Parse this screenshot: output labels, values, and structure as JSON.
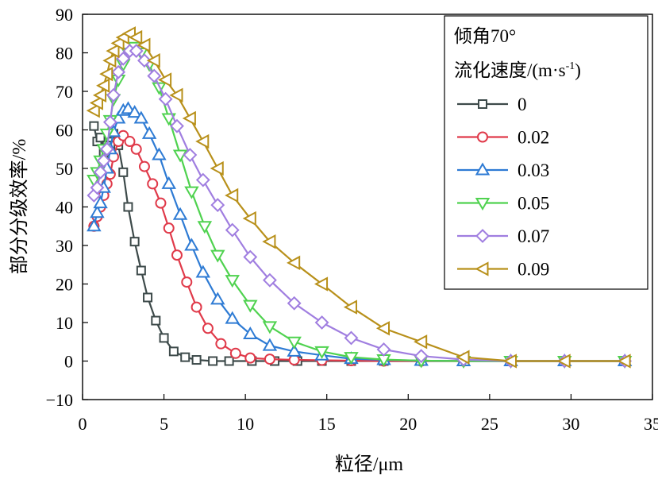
{
  "chart_data": {
    "type": "line",
    "xlabel": "粒径/μm",
    "ylabel": "部分分级效率/%",
    "xlim": [
      0,
      35
    ],
    "ylim": [
      -10,
      90
    ],
    "xticks": [
      "0",
      "5",
      "10",
      "15",
      "20",
      "25",
      "30",
      "35"
    ],
    "yticks": [
      "−10",
      "0",
      "10",
      "20",
      "30",
      "40",
      "50",
      "60",
      "70",
      "80",
      "90"
    ],
    "grid": false,
    "legend": {
      "placement": "top-right",
      "title_line1": "倾角70°",
      "title_line2_main": "流化速度/(m·s",
      "title_line2_sup": "-1",
      "title_line2_end": ")"
    },
    "series": [
      {
        "name": "0",
        "color": "#3d4a4a",
        "marker": "square",
        "points": [
          [
            0.7,
            61
          ],
          [
            0.9,
            57
          ],
          [
            1.1,
            58
          ],
          [
            1.3,
            54
          ],
          [
            1.5,
            56
          ],
          [
            1.7,
            58
          ],
          [
            1.9,
            59
          ],
          [
            2.2,
            56
          ],
          [
            2.5,
            49
          ],
          [
            2.8,
            40
          ],
          [
            3.2,
            31
          ],
          [
            3.6,
            23.5
          ],
          [
            4.0,
            16.5
          ],
          [
            4.5,
            10.5
          ],
          [
            5.0,
            6
          ],
          [
            5.6,
            2.5
          ],
          [
            6.3,
            1
          ],
          [
            7.0,
            0.3
          ],
          [
            8.0,
            0
          ],
          [
            9.0,
            0
          ],
          [
            10.4,
            0
          ],
          [
            11.8,
            0
          ],
          [
            13.2,
            0
          ],
          [
            14.7,
            0
          ],
          [
            16.5,
            0
          ],
          [
            18.5,
            0
          ],
          [
            20.8,
            0
          ],
          [
            23.4,
            0
          ],
          [
            26.3,
            0
          ],
          [
            29.6,
            0
          ],
          [
            33.3,
            0
          ]
        ]
      },
      {
        "name": "0.02",
        "color": "#e03a4a",
        "marker": "circle",
        "points": [
          [
            0.7,
            35
          ],
          [
            0.9,
            37.5
          ],
          [
            1.1,
            40
          ],
          [
            1.3,
            43
          ],
          [
            1.5,
            46
          ],
          [
            1.7,
            48.5
          ],
          [
            1.9,
            53
          ],
          [
            2.2,
            57
          ],
          [
            2.5,
            58.5
          ],
          [
            2.9,
            57
          ],
          [
            3.3,
            55
          ],
          [
            3.8,
            50.5
          ],
          [
            4.3,
            46
          ],
          [
            4.8,
            41
          ],
          [
            5.3,
            34.5
          ],
          [
            5.8,
            27.5
          ],
          [
            6.4,
            20.5
          ],
          [
            7.0,
            14
          ],
          [
            7.7,
            8.5
          ],
          [
            8.5,
            4.5
          ],
          [
            9.4,
            2
          ],
          [
            10.3,
            0.8
          ],
          [
            11.5,
            0.5
          ],
          [
            13.0,
            0.3
          ],
          [
            14.7,
            0.2
          ],
          [
            16.5,
            0.1
          ],
          [
            18.5,
            0
          ],
          [
            20.8,
            0
          ],
          [
            23.4,
            0
          ],
          [
            26.3,
            0
          ],
          [
            29.6,
            0
          ],
          [
            33.3,
            0
          ]
        ]
      },
      {
        "name": "0.03",
        "color": "#2e7bd4",
        "marker": "triangle-up",
        "points": [
          [
            0.7,
            35
          ],
          [
            0.9,
            38.5
          ],
          [
            1.1,
            41
          ],
          [
            1.3,
            45
          ],
          [
            1.5,
            50
          ],
          [
            1.7,
            55
          ],
          [
            1.9,
            59.5
          ],
          [
            2.2,
            63
          ],
          [
            2.5,
            65
          ],
          [
            2.8,
            65.5
          ],
          [
            3.2,
            64.5
          ],
          [
            3.6,
            63
          ],
          [
            4.1,
            59
          ],
          [
            4.7,
            53.5
          ],
          [
            5.3,
            46
          ],
          [
            6.0,
            38
          ],
          [
            6.7,
            30
          ],
          [
            7.4,
            23
          ],
          [
            8.3,
            16
          ],
          [
            9.2,
            11
          ],
          [
            10.3,
            7
          ],
          [
            11.5,
            4
          ],
          [
            13.0,
            2.5
          ],
          [
            14.7,
            1.5
          ],
          [
            16.5,
            0.6
          ],
          [
            18.5,
            0.3
          ],
          [
            20.8,
            0.1
          ],
          [
            23.4,
            0
          ],
          [
            26.3,
            0
          ],
          [
            29.6,
            0
          ],
          [
            33.3,
            0
          ]
        ]
      },
      {
        "name": "0.05",
        "color": "#4fd24f",
        "marker": "triangle-down",
        "points": [
          [
            0.7,
            47
          ],
          [
            0.9,
            49
          ],
          [
            1.1,
            52
          ],
          [
            1.3,
            55
          ],
          [
            1.5,
            59
          ],
          [
            1.7,
            62.5
          ],
          [
            1.9,
            68
          ],
          [
            2.2,
            73
          ],
          [
            2.5,
            77
          ],
          [
            2.8,
            80
          ],
          [
            3.2,
            81.5
          ],
          [
            3.6,
            80
          ],
          [
            4.1,
            77
          ],
          [
            4.7,
            71
          ],
          [
            5.3,
            63
          ],
          [
            6.0,
            53.5
          ],
          [
            6.7,
            44
          ],
          [
            7.5,
            35
          ],
          [
            8.3,
            27.5
          ],
          [
            9.2,
            21
          ],
          [
            10.3,
            14.5
          ],
          [
            11.5,
            9
          ],
          [
            13.0,
            5
          ],
          [
            14.7,
            2.5
          ],
          [
            16.5,
            1
          ],
          [
            18.5,
            0.4
          ],
          [
            20.8,
            0.1
          ],
          [
            23.4,
            0
          ],
          [
            26.3,
            0
          ],
          [
            29.6,
            0
          ],
          [
            33.3,
            0
          ]
        ]
      },
      {
        "name": "0.07",
        "color": "#a07ee0",
        "marker": "diamond",
        "points": [
          [
            0.7,
            43
          ],
          [
            0.9,
            45
          ],
          [
            1.1,
            49
          ],
          [
            1.3,
            52
          ],
          [
            1.5,
            55
          ],
          [
            1.7,
            62
          ],
          [
            1.9,
            69
          ],
          [
            2.2,
            75
          ],
          [
            2.5,
            78.5
          ],
          [
            2.9,
            80.5
          ],
          [
            3.3,
            80.5
          ],
          [
            3.8,
            78
          ],
          [
            4.4,
            74
          ],
          [
            5.1,
            68
          ],
          [
            5.8,
            61
          ],
          [
            6.6,
            53.5
          ],
          [
            7.4,
            47
          ],
          [
            8.3,
            40.5
          ],
          [
            9.2,
            34
          ],
          [
            10.3,
            27
          ],
          [
            11.5,
            21
          ],
          [
            13.0,
            15
          ],
          [
            14.7,
            10
          ],
          [
            16.5,
            6
          ],
          [
            18.5,
            3
          ],
          [
            20.8,
            1.3
          ],
          [
            23.4,
            0.4
          ],
          [
            26.3,
            0
          ],
          [
            29.6,
            0
          ],
          [
            33.3,
            0
          ]
        ]
      },
      {
        "name": "0.09",
        "color": "#b8901a",
        "marker": "triangle-left",
        "points": [
          [
            0.7,
            65
          ],
          [
            0.9,
            67
          ],
          [
            1.1,
            69
          ],
          [
            1.3,
            71.5
          ],
          [
            1.5,
            74.5
          ],
          [
            1.7,
            78
          ],
          [
            1.9,
            80.5
          ],
          [
            2.2,
            82.5
          ],
          [
            2.5,
            84
          ],
          [
            2.9,
            85
          ],
          [
            3.3,
            84
          ],
          [
            3.8,
            82
          ],
          [
            4.4,
            78
          ],
          [
            5.1,
            73
          ],
          [
            5.8,
            69
          ],
          [
            6.6,
            63
          ],
          [
            7.4,
            57
          ],
          [
            8.3,
            50
          ],
          [
            9.2,
            43
          ],
          [
            10.3,
            37
          ],
          [
            11.5,
            31
          ],
          [
            13.0,
            25.5
          ],
          [
            14.7,
            20
          ],
          [
            16.5,
            14
          ],
          [
            18.5,
            8.5
          ],
          [
            20.8,
            5
          ],
          [
            23.4,
            1
          ],
          [
            26.3,
            0
          ],
          [
            29.6,
            0
          ],
          [
            33.3,
            0
          ]
        ]
      }
    ]
  }
}
